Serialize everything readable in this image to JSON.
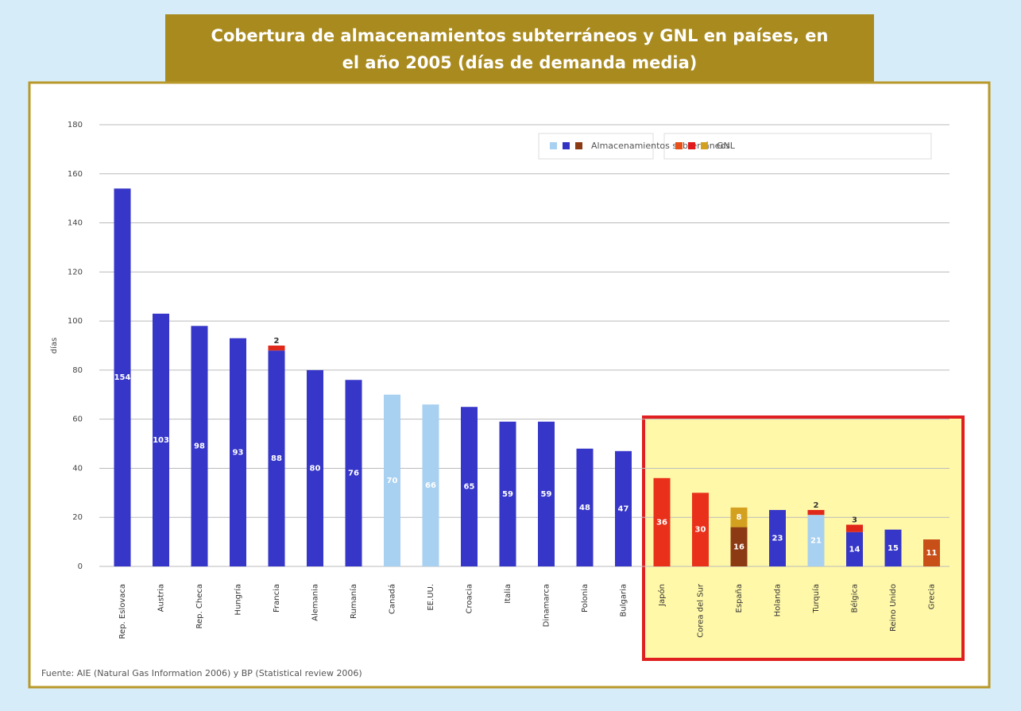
{
  "chart_data": {
    "type": "stacked_bar",
    "title": [
      "Cobertura de almacenamientos subterráneos y GNL en países, en",
      "el año 2005 (días de demanda media)"
    ],
    "y_label": "días",
    "source": "Fuente: AIE (Natural Gas Information 2006) y BP (Statistical review 2006)",
    "categories": [
      "Rep. Eslovaca",
      "Austria",
      "Rep. Checa",
      "Hungría",
      "Francia",
      "Alemania",
      "Rumanía",
      "Canadá",
      "EE.UU.",
      "Croacia",
      "Italia",
      "Dinamarca",
      "Polonia",
      "Bulgaria",
      "Japón",
      "Corea del Sur",
      "España",
      "Holanda",
      "Turquía",
      "Bélgica",
      "Reino Unido",
      "Grecia"
    ],
    "series": [
      {
        "name": "Almacenamientos subterráneos",
        "legend_colors": [
          "#a8d0f0",
          "#3232c4",
          "#8b3a14"
        ],
        "colors": [
          "#3636c8",
          "#3636c8",
          "#3636c8",
          "#3636c8",
          "#3636c8",
          "#3636c8",
          "#3636c8",
          "#a8d0f0",
          "#a8d0f0",
          "#3636c8",
          "#3636c8",
          "#3636c8",
          "#3636c8",
          "#3636c8",
          null,
          null,
          "#8b3a14",
          "#3636c8",
          "#a8d0f0",
          "#3636c8",
          "#3636c8",
          null
        ],
        "values": [
          154,
          103,
          98,
          93,
          88,
          80,
          76,
          70,
          66,
          65,
          59,
          59,
          48,
          47,
          null,
          null,
          16,
          23,
          21,
          14,
          15,
          null
        ]
      },
      {
        "name": "GNL",
        "legend_colors": [
          "#e8501a",
          "#e01a1a",
          "#d4a020"
        ],
        "colors": [
          null,
          null,
          null,
          null,
          "#e0281a",
          null,
          null,
          null,
          null,
          null,
          null,
          null,
          null,
          null,
          "#e8301a",
          "#e8301a",
          "#d4a020",
          null,
          "#e0281a",
          "#e0281a",
          null,
          "#c85018"
        ],
        "values": [
          null,
          null,
          null,
          null,
          2,
          null,
          null,
          null,
          null,
          null,
          null,
          null,
          null,
          null,
          36,
          30,
          8,
          null,
          2,
          3,
          null,
          11
        ]
      }
    ],
    "ylim": [
      0,
      180
    ],
    "yticks": [
      0,
      20,
      40,
      60,
      80,
      100,
      120,
      140,
      160,
      180
    ],
    "grid": true
  }
}
